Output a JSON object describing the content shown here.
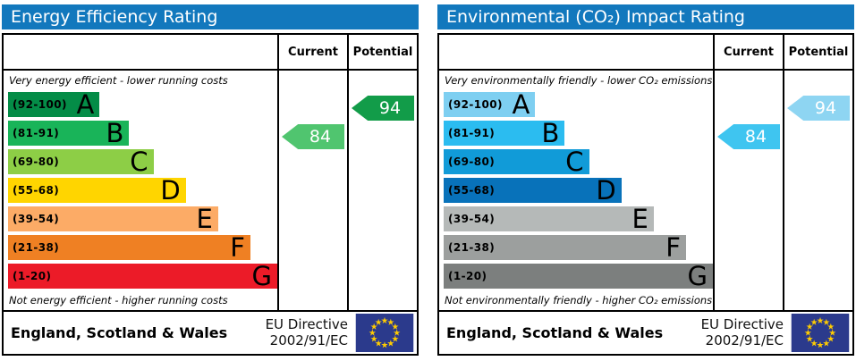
{
  "chart_data": [
    {
      "type": "bar",
      "title": "Energy Efficiency Rating",
      "categories": [
        "A",
        "B",
        "C",
        "D",
        "E",
        "F",
        "G"
      ],
      "band_ranges": [
        "92-100",
        "81-91",
        "69-80",
        "55-68",
        "39-54",
        "21-38",
        "1-20"
      ],
      "values": [
        34,
        45,
        54,
        66,
        78,
        90,
        100
      ],
      "current": 84,
      "current_band": "B",
      "potential": 94,
      "potential_band": "A",
      "top_note": "Very energy efficient - lower running costs",
      "bottom_note": "Not energy efficient - higher running costs"
    },
    {
      "type": "bar",
      "title": "Environmental (CO₂) Impact Rating",
      "categories": [
        "A",
        "B",
        "C",
        "D",
        "E",
        "F",
        "G"
      ],
      "band_ranges": [
        "92-100",
        "81-91",
        "69-80",
        "55-68",
        "39-54",
        "21-38",
        "1-20"
      ],
      "values": [
        34,
        45,
        54,
        66,
        78,
        90,
        100
      ],
      "current": 84,
      "current_band": "B",
      "potential": 94,
      "potential_band": "A",
      "top_note": "Very environmentally friendly - lower CO₂ emissions",
      "bottom_note": "Not environmentally friendly - higher CO₂ emissions"
    }
  ],
  "charts": [
    {
      "title": "Energy Efficiency Rating",
      "accent": "#1278bd",
      "columns": {
        "current": "Current",
        "potential": "Potential"
      },
      "top_caption": "Very energy efficient - lower running costs",
      "bottom_caption": "Not energy efficient - higher running costs",
      "bands": [
        {
          "range": "(92-100)",
          "letter": "A",
          "color": "#048c47",
          "width": "34%"
        },
        {
          "range": "(81-91)",
          "letter": "B",
          "color": "#19b459",
          "width": "45%"
        },
        {
          "range": "(69-80)",
          "letter": "C",
          "color": "#8dce46",
          "width": "54%"
        },
        {
          "range": "(55-68)",
          "letter": "D",
          "color": "#ffd500",
          "width": "66%"
        },
        {
          "range": "(39-54)",
          "letter": "E",
          "color": "#fcab66",
          "width": "78%"
        },
        {
          "range": "(21-38)",
          "letter": "F",
          "color": "#ef8023",
          "width": "90%"
        },
        {
          "range": "(1-20)",
          "letter": "G",
          "color": "#ec1b28",
          "width": "100%"
        }
      ],
      "current": {
        "value": "84",
        "band_index": 1,
        "color": "#50c56f"
      },
      "potential": {
        "value": "94",
        "band_index": 0,
        "color": "#129c49"
      },
      "footer": {
        "region": "England, Scotland & Wales",
        "directive_line1": "EU Directive",
        "directive_line2": "2002/91/EC",
        "flag_bg": "#2b3a8c",
        "flag_star": "#ffcc00"
      }
    },
    {
      "title": "Environmental (CO₂) Impact Rating",
      "accent": "#1278bd",
      "columns": {
        "current": "Current",
        "potential": "Potential"
      },
      "top_caption": "Very environmentally friendly - lower CO₂ emissions",
      "bottom_caption": "Not environmentally friendly - higher CO₂ emissions",
      "bands": [
        {
          "range": "(92-100)",
          "letter": "A",
          "color": "#7ecff1",
          "width": "34%"
        },
        {
          "range": "(81-91)",
          "letter": "B",
          "color": "#2bbcf0",
          "width": "45%"
        },
        {
          "range": "(69-80)",
          "letter": "C",
          "color": "#119bd8",
          "width": "54%"
        },
        {
          "range": "(55-68)",
          "letter": "D",
          "color": "#0872ba",
          "width": "66%"
        },
        {
          "range": "(39-54)",
          "letter": "E",
          "color": "#b5b9b8",
          "width": "78%"
        },
        {
          "range": "(21-38)",
          "letter": "F",
          "color": "#9c9f9e",
          "width": "90%"
        },
        {
          "range": "(1-20)",
          "letter": "G",
          "color": "#7c7f7e",
          "width": "100%"
        }
      ],
      "current": {
        "value": "84",
        "band_index": 1,
        "color": "#3fc5f0"
      },
      "potential": {
        "value": "94",
        "band_index": 0,
        "color": "#8ed5f2"
      },
      "footer": {
        "region": "England, Scotland & Wales",
        "directive_line1": "EU Directive",
        "directive_line2": "2002/91/EC",
        "flag_bg": "#2b3a8c",
        "flag_star": "#ffcc00"
      }
    }
  ]
}
